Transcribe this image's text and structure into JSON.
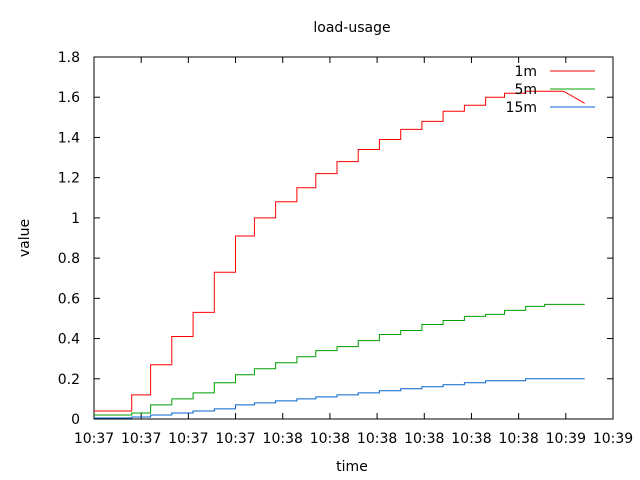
{
  "chart_data": {
    "type": "line",
    "title": "load-usage",
    "xlabel": "time",
    "ylabel": "value",
    "ylim": [
      0,
      1.8
    ],
    "yticks": [
      0,
      0.2,
      0.4,
      0.6,
      0.8,
      1,
      1.2,
      1.4,
      1.6,
      1.8
    ],
    "ytick_labels": [
      "0",
      "0.2",
      "0.4",
      "0.6",
      "0.8",
      "1",
      "1.2",
      "1.4",
      "1.6",
      "1.8"
    ],
    "xlim": [
      0,
      11
    ],
    "xticks": [
      0,
      1,
      2,
      3,
      4,
      5,
      6,
      7,
      8,
      9,
      10,
      11
    ],
    "xtick_labels": [
      "10:37",
      "10:37",
      "10:37",
      "10:37",
      "10:38",
      "10:38",
      "10:38",
      "10:38",
      "10:38",
      "10:38",
      "10:39",
      "10:39"
    ],
    "grid": false,
    "legend_position": "top-right",
    "series": [
      {
        "name": "1m",
        "color": "#ff0000",
        "x": [
          0,
          0.8,
          0.8,
          1.2,
          1.2,
          1.65,
          1.65,
          2.1,
          2.1,
          2.55,
          2.55,
          3.0,
          3.0,
          3.4,
          3.4,
          3.85,
          3.85,
          4.3,
          4.3,
          4.7,
          4.7,
          5.15,
          5.15,
          5.6,
          5.6,
          6.05,
          6.05,
          6.5,
          6.5,
          6.95,
          6.95,
          7.4,
          7.4,
          7.85,
          7.85,
          8.3,
          8.3,
          8.7,
          8.7,
          9.15,
          9.15,
          9.55,
          9.55,
          9.95,
          9.95,
          10.4
        ],
        "y": [
          0.04,
          0.04,
          0.12,
          0.12,
          0.27,
          0.27,
          0.41,
          0.41,
          0.53,
          0.53,
          0.73,
          0.73,
          0.91,
          0.91,
          1.0,
          1.0,
          1.08,
          1.08,
          1.15,
          1.15,
          1.22,
          1.22,
          1.28,
          1.28,
          1.34,
          1.34,
          1.39,
          1.39,
          1.44,
          1.44,
          1.48,
          1.48,
          1.53,
          1.53,
          1.56,
          1.56,
          1.6,
          1.6,
          1.62,
          1.62,
          1.63,
          1.63,
          1.63,
          1.63,
          1.63,
          1.57
        ]
      },
      {
        "name": "5m",
        "color": "#00a000",
        "x": [
          0,
          0.8,
          0.8,
          1.2,
          1.2,
          1.65,
          1.65,
          2.1,
          2.1,
          2.55,
          2.55,
          3.0,
          3.0,
          3.4,
          3.4,
          3.85,
          3.85,
          4.3,
          4.3,
          4.7,
          4.7,
          5.15,
          5.15,
          5.6,
          5.6,
          6.05,
          6.05,
          6.5,
          6.5,
          6.95,
          6.95,
          7.4,
          7.4,
          7.85,
          7.85,
          8.3,
          8.3,
          8.7,
          8.7,
          9.15,
          9.15,
          9.55,
          9.55,
          10.4
        ],
        "y": [
          0.02,
          0.02,
          0.03,
          0.03,
          0.07,
          0.07,
          0.1,
          0.1,
          0.13,
          0.13,
          0.18,
          0.18,
          0.22,
          0.22,
          0.25,
          0.25,
          0.28,
          0.28,
          0.31,
          0.31,
          0.34,
          0.34,
          0.36,
          0.36,
          0.39,
          0.39,
          0.42,
          0.42,
          0.44,
          0.44,
          0.47,
          0.47,
          0.49,
          0.49,
          0.51,
          0.51,
          0.52,
          0.52,
          0.54,
          0.54,
          0.56,
          0.56,
          0.57,
          0.57
        ]
      },
      {
        "name": "15m",
        "color": "#0066cc",
        "x": [
          0,
          0.8,
          0.8,
          1.2,
          1.2,
          1.65,
          1.65,
          2.1,
          2.1,
          2.55,
          2.55,
          3.0,
          3.0,
          3.4,
          3.4,
          3.85,
          3.85,
          4.3,
          4.3,
          4.7,
          4.7,
          5.15,
          5.15,
          5.6,
          5.6,
          6.05,
          6.05,
          6.5,
          6.5,
          6.95,
          6.95,
          7.4,
          7.4,
          7.85,
          7.85,
          8.3,
          8.3,
          8.7,
          8.7,
          9.15,
          9.15,
          9.55,
          9.55,
          10.4
        ],
        "y": [
          0.005,
          0.005,
          0.01,
          0.01,
          0.02,
          0.02,
          0.03,
          0.03,
          0.04,
          0.04,
          0.05,
          0.05,
          0.07,
          0.07,
          0.08,
          0.08,
          0.09,
          0.09,
          0.1,
          0.1,
          0.11,
          0.11,
          0.12,
          0.12,
          0.13,
          0.13,
          0.14,
          0.14,
          0.15,
          0.15,
          0.16,
          0.16,
          0.17,
          0.17,
          0.18,
          0.18,
          0.19,
          0.19,
          0.19,
          0.19,
          0.2,
          0.2,
          0.2,
          0.2
        ]
      }
    ]
  }
}
